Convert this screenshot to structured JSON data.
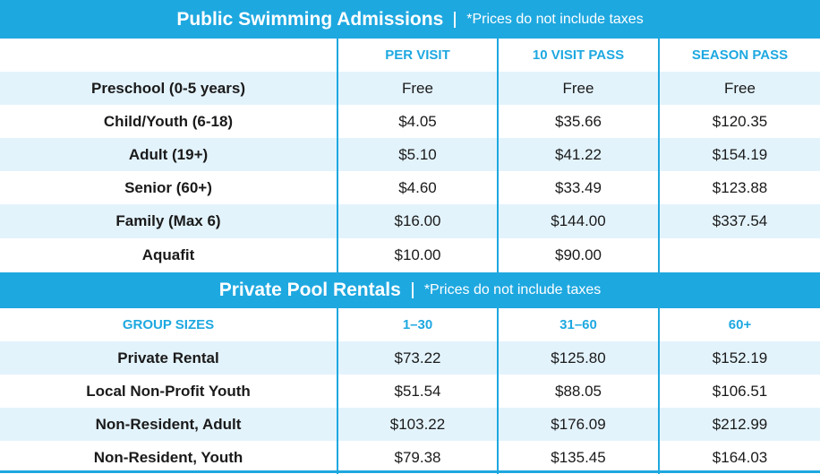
{
  "public": {
    "title": "Public Swimming Admissions",
    "note": "*Prices do not include taxes",
    "headers": [
      "",
      "PER VISIT",
      "10 VISIT PASS",
      "SEASON PASS"
    ],
    "rows": [
      {
        "label": "Preschool (0-5 years)",
        "values": [
          "Free",
          "Free",
          "Free"
        ]
      },
      {
        "label": "Child/Youth (6-18)",
        "values": [
          "$4.05",
          "$35.66",
          "$120.35"
        ]
      },
      {
        "label": "Adult (19+)",
        "values": [
          "$5.10",
          "$41.22",
          "$154.19"
        ]
      },
      {
        "label": "Senior (60+)",
        "values": [
          "$4.60",
          "$33.49",
          "$123.88"
        ]
      },
      {
        "label": "Family (Max 6)",
        "values": [
          "$16.00",
          "$144.00",
          "$337.54"
        ]
      },
      {
        "label": "Aquafit",
        "values": [
          "$10.00",
          "$90.00",
          ""
        ]
      }
    ]
  },
  "private": {
    "title": "Private Pool Rentals",
    "note": "*Prices do not include taxes",
    "headers": [
      "GROUP SIZES",
      "1–30",
      "31–60",
      "60+"
    ],
    "rows": [
      {
        "label": "Private Rental",
        "values": [
          "$73.22",
          "$125.80",
          "$152.19"
        ]
      },
      {
        "label": "Local Non-Profit Youth",
        "values": [
          "$51.54",
          "$88.05",
          "$106.51"
        ]
      },
      {
        "label": "Non-Resident, Adult",
        "values": [
          "$103.22",
          "$176.09",
          "$212.99"
        ]
      },
      {
        "label": "Non-Resident, Youth",
        "values": [
          "$79.38",
          "$135.45",
          "$164.03"
        ]
      }
    ]
  },
  "colors": {
    "accent": "#1ea8e0",
    "stripe": "#e3f3fc"
  }
}
